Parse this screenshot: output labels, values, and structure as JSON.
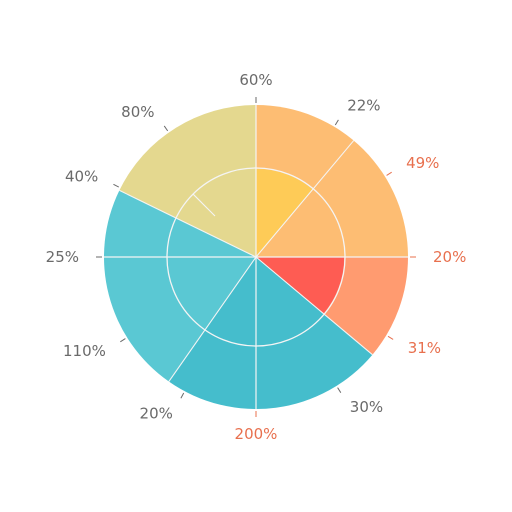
{
  "chart_data": {
    "type": "pie",
    "colors": {
      "yellow": "#e4d88f",
      "orange": "#fdbd73",
      "gold": "#fecb57",
      "coral": "#ff9b70",
      "red": "#fe5c53",
      "teal": "#5ac8d3",
      "teal_dark": "#45bdcc",
      "grid": "#f4f4f4",
      "label_dark": "#6a6a6a",
      "label_warm": "#e8704e"
    },
    "slices": [
      {
        "start": -90,
        "end": 0,
        "outer": 1.0,
        "color": "#fdbd73"
      },
      {
        "start": 0,
        "end": 40,
        "outer": 1.0,
        "color": "#ff9b70"
      },
      {
        "start": 40,
        "end": 125,
        "outer": 1.0,
        "color": "#45bdcc"
      },
      {
        "start": 125,
        "end": 206,
        "outer": 1.0,
        "color": "#5ac8d3"
      },
      {
        "start": 206,
        "end": 270,
        "outer": 1.0,
        "color": "#e4d88f"
      },
      {
        "start": -90,
        "end": -50,
        "outer": 0.58,
        "color": "#fecb57"
      },
      {
        "start": 0,
        "end": 40,
        "outer": 0.58,
        "color": "#fe5c53"
      }
    ],
    "labels": [
      {
        "text": "60%",
        "angle": -90,
        "tone": "dark"
      },
      {
        "text": "22%",
        "angle": -59,
        "tone": "dark"
      },
      {
        "text": "49%",
        "angle": -32,
        "tone": "warm"
      },
      {
        "text": "20%",
        "angle": 0,
        "tone": "warm"
      },
      {
        "text": "31%",
        "angle": 31,
        "tone": "warm"
      },
      {
        "text": "30%",
        "angle": 58,
        "tone": "dark"
      },
      {
        "text": "200%",
        "angle": 90,
        "tone": "warm"
      },
      {
        "text": "20%",
        "angle": 118,
        "tone": "dark"
      },
      {
        "text": "110%",
        "angle": 148,
        "tone": "dark"
      },
      {
        "text": "25%",
        "angle": 180,
        "tone": "dark"
      },
      {
        "text": "40%",
        "angle": 207,
        "tone": "dark"
      },
      {
        "text": "80%",
        "angle": 235,
        "tone": "dark"
      }
    ],
    "legend": "none",
    "grid": true
  }
}
